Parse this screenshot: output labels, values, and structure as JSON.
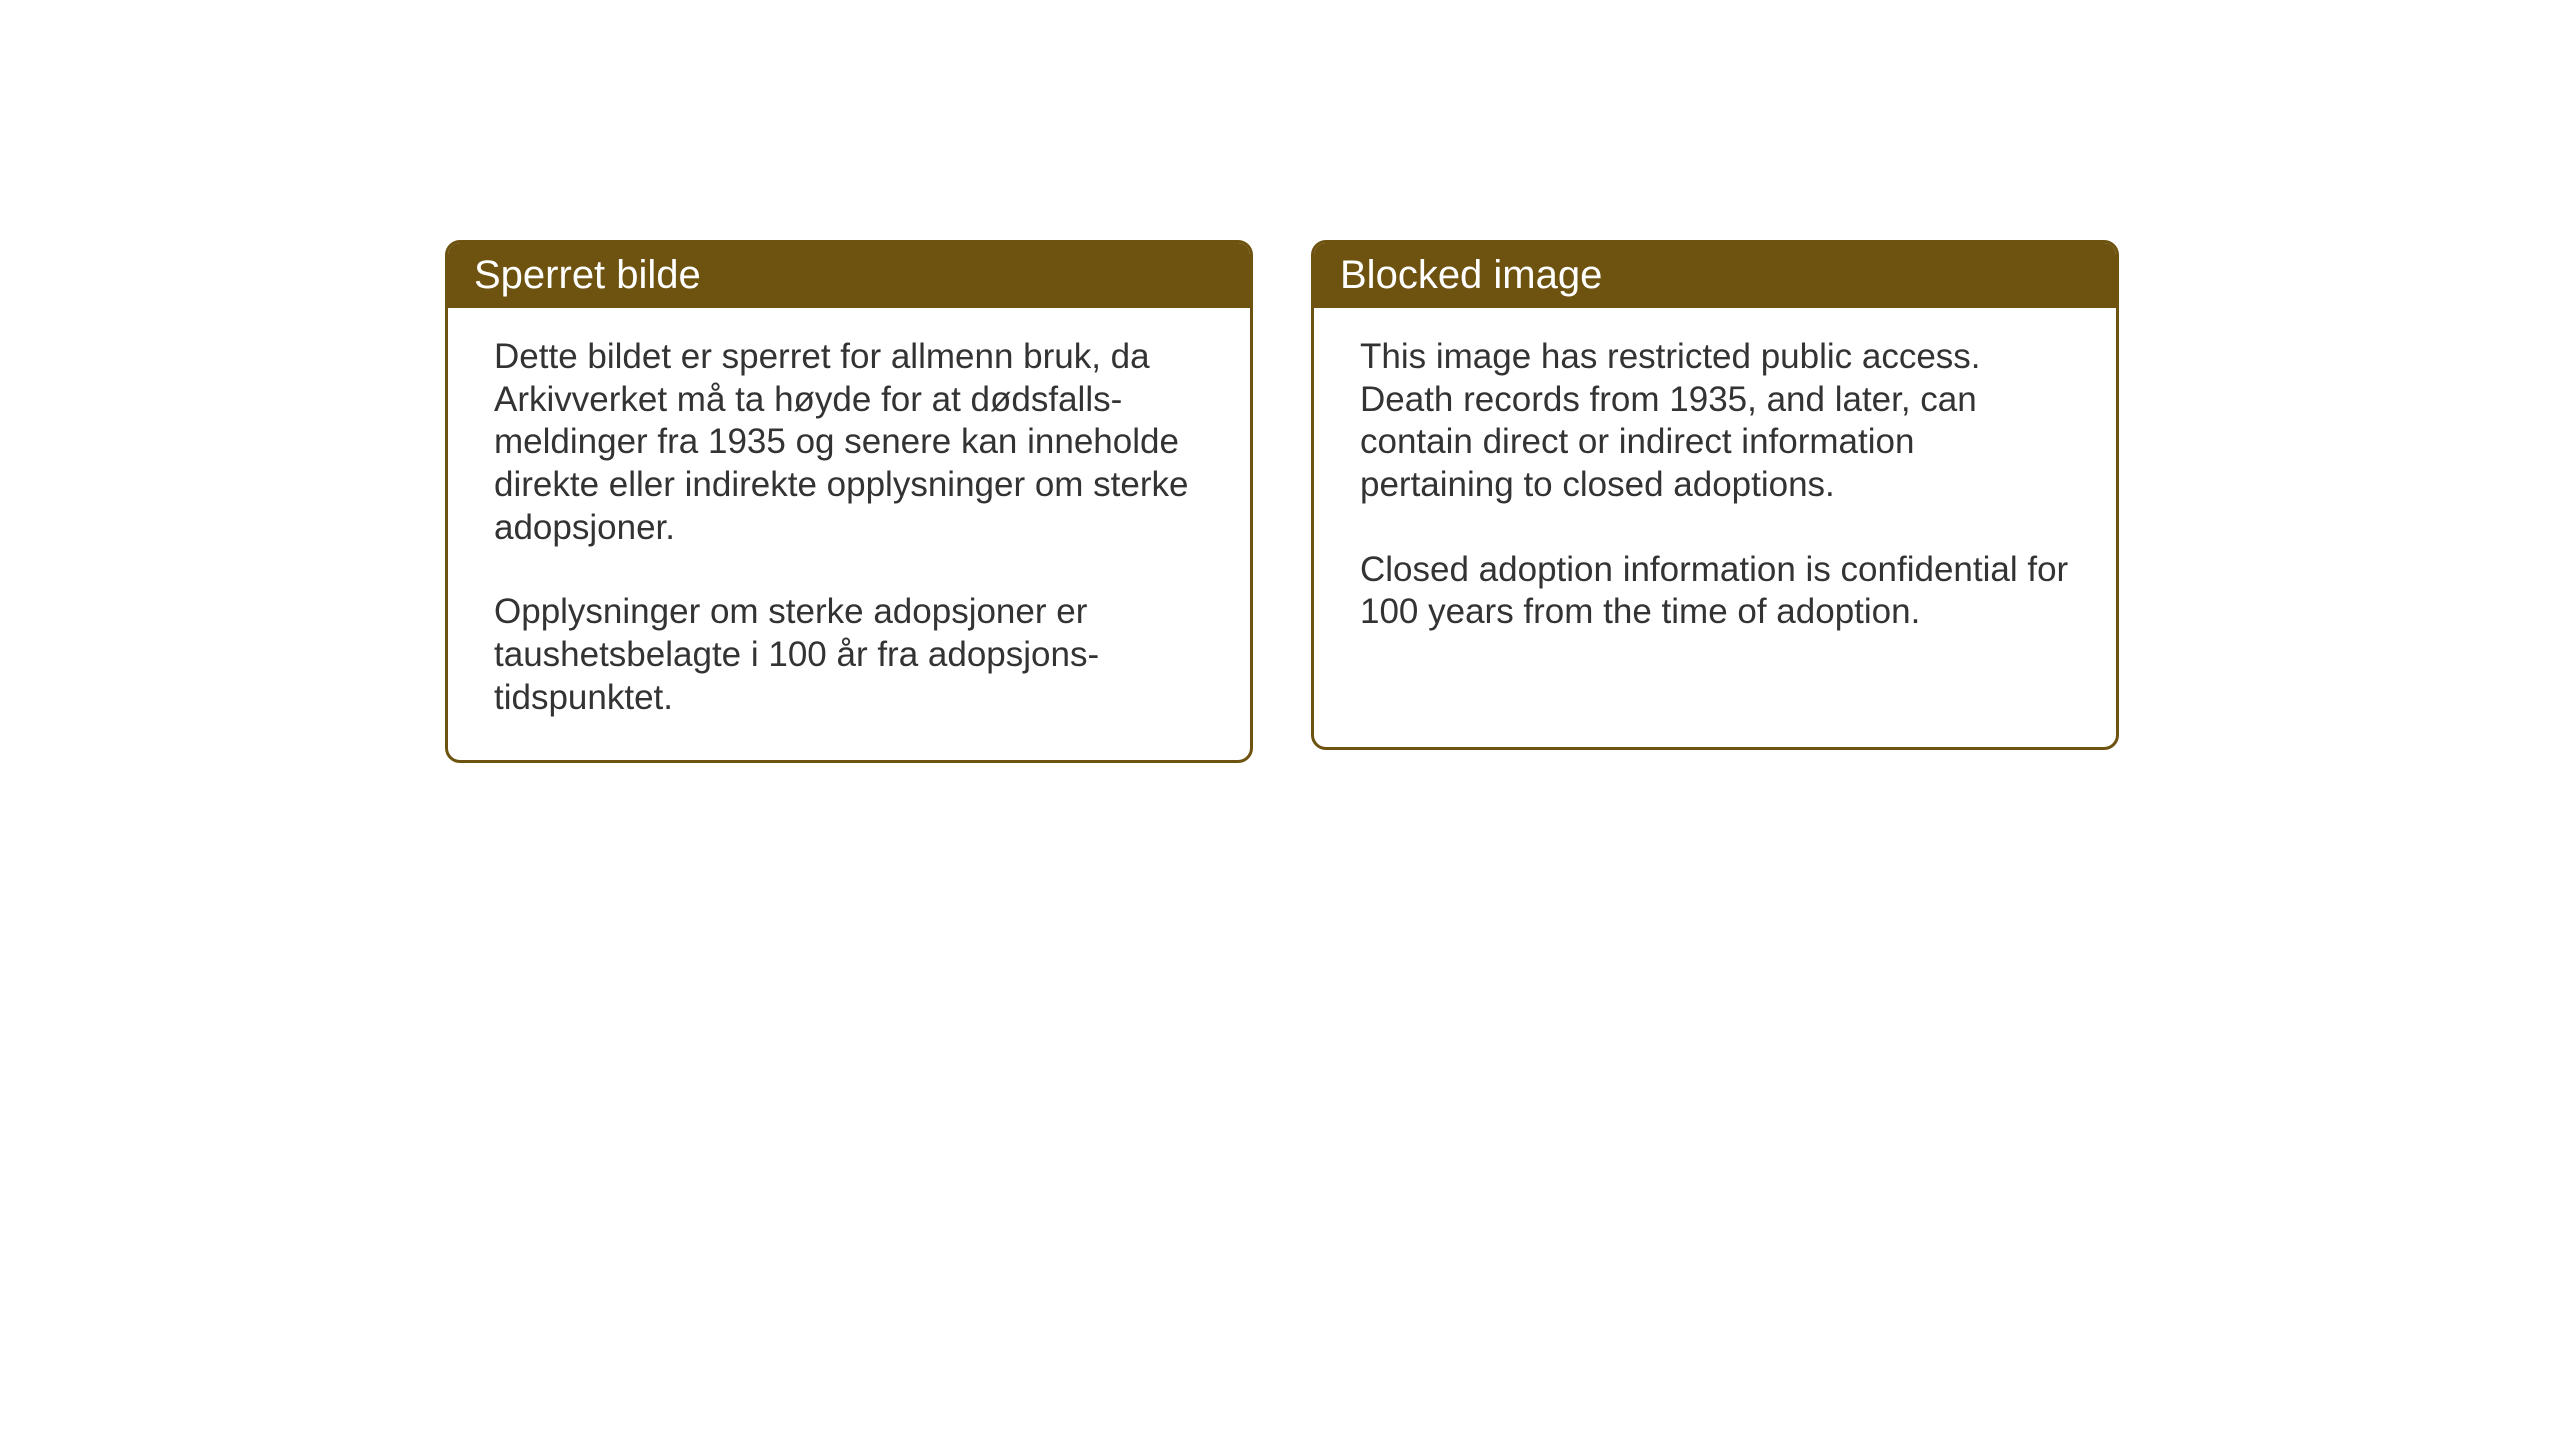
{
  "notices": {
    "norwegian": {
      "title": "Sperret bilde",
      "paragraph1": "Dette bildet er sperret for allmenn bruk, da Arkivverket må ta høyde for at dødsfalls-meldinger fra 1935 og senere kan inneholde direkte eller indirekte opplysninger om sterke adopsjoner.",
      "paragraph2": "Opplysninger om sterke adopsjoner er taushetsbelagte i 100 år fra adopsjons-tidspunktet."
    },
    "english": {
      "title": "Blocked image",
      "paragraph1": "This image has restricted public access. Death records from 1935, and later, can contain direct or indirect information pertaining to closed adoptions.",
      "paragraph2": "Closed adoption information is confidential for 100 years from the time of adoption."
    }
  },
  "styling": {
    "header_bg_color": "#6e5310",
    "header_text_color": "#ffffff",
    "border_color": "#6e5310",
    "body_text_color": "#333333",
    "background_color": "#ffffff",
    "border_radius": 15,
    "border_width": 3,
    "title_fontsize": 40,
    "body_fontsize": 35
  }
}
